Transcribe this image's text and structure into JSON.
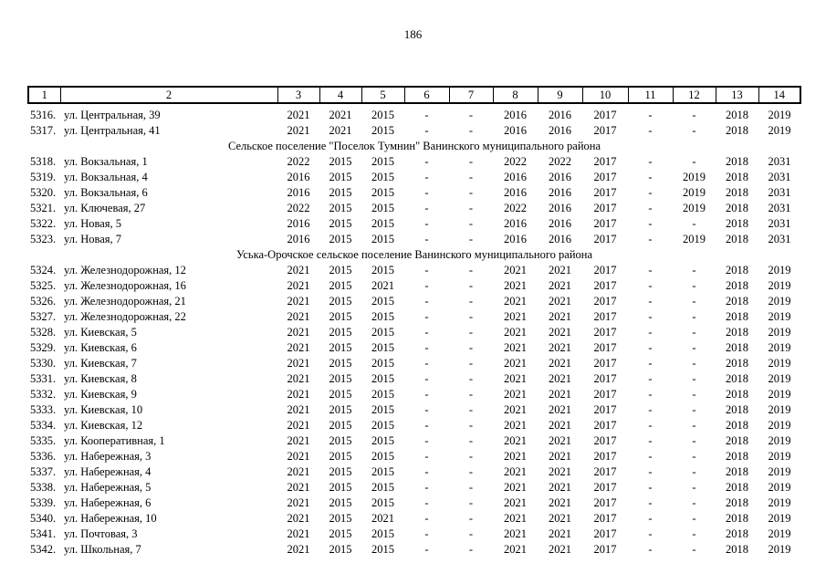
{
  "page": {
    "number": "186"
  },
  "table": {
    "columns": [
      "1",
      "2",
      "3",
      "4",
      "5",
      "6",
      "7",
      "8",
      "9",
      "10",
      "11",
      "12",
      "13",
      "14"
    ],
    "rows": [
      {
        "type": "data",
        "num": "5316.",
        "street": "ул. Центральная, 39",
        "values": [
          "2021",
          "2021",
          "2015",
          "-",
          "-",
          "2016",
          "2016",
          "2017",
          "-",
          "-",
          "2018",
          "2019"
        ]
      },
      {
        "type": "data",
        "num": "5317.",
        "street": "ул. Центральная, 41",
        "values": [
          "2021",
          "2021",
          "2015",
          "-",
          "-",
          "2016",
          "2016",
          "2017",
          "-",
          "-",
          "2018",
          "2019"
        ]
      },
      {
        "type": "section",
        "label": "Сельское поселение \"Поселок Тумнин\" Ванинского муниципального района"
      },
      {
        "type": "data",
        "num": "5318.",
        "street": "ул. Вокзальная, 1",
        "values": [
          "2022",
          "2015",
          "2015",
          "-",
          "-",
          "2022",
          "2022",
          "2017",
          "-",
          "-",
          "2018",
          "2031"
        ]
      },
      {
        "type": "data",
        "num": "5319.",
        "street": "ул. Вокзальная, 4",
        "values": [
          "2016",
          "2015",
          "2015",
          "-",
          "-",
          "2016",
          "2016",
          "2017",
          "-",
          "2019",
          "2018",
          "2031"
        ]
      },
      {
        "type": "data",
        "num": "5320.",
        "street": "ул. Вокзальная, 6",
        "values": [
          "2016",
          "2015",
          "2015",
          "-",
          "-",
          "2016",
          "2016",
          "2017",
          "-",
          "2019",
          "2018",
          "2031"
        ]
      },
      {
        "type": "data",
        "num": "5321.",
        "street": "ул. Ключевая, 27",
        "values": [
          "2022",
          "2015",
          "2015",
          "-",
          "-",
          "2022",
          "2016",
          "2017",
          "-",
          "2019",
          "2018",
          "2031"
        ]
      },
      {
        "type": "data",
        "num": "5322.",
        "street": "ул. Новая, 5",
        "values": [
          "2016",
          "2015",
          "2015",
          "-",
          "-",
          "2016",
          "2016",
          "2017",
          "-",
          "-",
          "2018",
          "2031"
        ]
      },
      {
        "type": "data",
        "num": "5323.",
        "street": "ул. Новая, 7",
        "values": [
          "2016",
          "2015",
          "2015",
          "-",
          "-",
          "2016",
          "2016",
          "2017",
          "-",
          "2019",
          "2018",
          "2031"
        ]
      },
      {
        "type": "section",
        "label": "Уська-Орочское сельское поселение Ванинского муниципального района"
      },
      {
        "type": "data",
        "num": "5324.",
        "street": "ул. Железнодорожная, 12",
        "values": [
          "2021",
          "2015",
          "2015",
          "-",
          "-",
          "2021",
          "2021",
          "2017",
          "-",
          "-",
          "2018",
          "2019"
        ]
      },
      {
        "type": "data",
        "num": "5325.",
        "street": "ул. Железнодорожная, 16",
        "values": [
          "2021",
          "2015",
          "2021",
          "-",
          "-",
          "2021",
          "2021",
          "2017",
          "-",
          "-",
          "2018",
          "2019"
        ]
      },
      {
        "type": "data",
        "num": "5326.",
        "street": "ул. Железнодорожная, 21",
        "values": [
          "2021",
          "2015",
          "2015",
          "-",
          "-",
          "2021",
          "2021",
          "2017",
          "-",
          "-",
          "2018",
          "2019"
        ]
      },
      {
        "type": "data",
        "num": "5327.",
        "street": "ул. Железнодорожная, 22",
        "values": [
          "2021",
          "2015",
          "2015",
          "-",
          "-",
          "2021",
          "2021",
          "2017",
          "-",
          "-",
          "2018",
          "2019"
        ]
      },
      {
        "type": "data",
        "num": "5328.",
        "street": "ул. Киевская, 5",
        "values": [
          "2021",
          "2015",
          "2015",
          "-",
          "-",
          "2021",
          "2021",
          "2017",
          "-",
          "-",
          "2018",
          "2019"
        ]
      },
      {
        "type": "data",
        "num": "5329.",
        "street": "ул. Киевская, 6",
        "values": [
          "2021",
          "2015",
          "2015",
          "-",
          "-",
          "2021",
          "2021",
          "2017",
          "-",
          "-",
          "2018",
          "2019"
        ]
      },
      {
        "type": "data",
        "num": "5330.",
        "street": "ул. Киевская, 7",
        "values": [
          "2021",
          "2015",
          "2015",
          "-",
          "-",
          "2021",
          "2021",
          "2017",
          "-",
          "-",
          "2018",
          "2019"
        ]
      },
      {
        "type": "data",
        "num": "5331.",
        "street": "ул. Киевская, 8",
        "values": [
          "2021",
          "2015",
          "2015",
          "-",
          "-",
          "2021",
          "2021",
          "2017",
          "-",
          "-",
          "2018",
          "2019"
        ]
      },
      {
        "type": "data",
        "num": "5332.",
        "street": "ул. Киевская, 9",
        "values": [
          "2021",
          "2015",
          "2015",
          "-",
          "-",
          "2021",
          "2021",
          "2017",
          "-",
          "-",
          "2018",
          "2019"
        ]
      },
      {
        "type": "data",
        "num": "5333.",
        "street": "ул. Киевская, 10",
        "values": [
          "2021",
          "2015",
          "2015",
          "-",
          "-",
          "2021",
          "2021",
          "2017",
          "-",
          "-",
          "2018",
          "2019"
        ]
      },
      {
        "type": "data",
        "num": "5334.",
        "street": "ул. Киевская, 12",
        "values": [
          "2021",
          "2015",
          "2015",
          "-",
          "-",
          "2021",
          "2021",
          "2017",
          "-",
          "-",
          "2018",
          "2019"
        ]
      },
      {
        "type": "data",
        "num": "5335.",
        "street": "ул. Кооперативная, 1",
        "values": [
          "2021",
          "2015",
          "2015",
          "-",
          "-",
          "2021",
          "2021",
          "2017",
          "-",
          "-",
          "2018",
          "2019"
        ]
      },
      {
        "type": "data",
        "num": "5336.",
        "street": "ул. Набережная, 3",
        "values": [
          "2021",
          "2015",
          "2015",
          "-",
          "-",
          "2021",
          "2021",
          "2017",
          "-",
          "-",
          "2018",
          "2019"
        ]
      },
      {
        "type": "data",
        "num": "5337.",
        "street": "ул. Набережная, 4",
        "values": [
          "2021",
          "2015",
          "2015",
          "-",
          "-",
          "2021",
          "2021",
          "2017",
          "-",
          "-",
          "2018",
          "2019"
        ]
      },
      {
        "type": "data",
        "num": "5338.",
        "street": "ул. Набережная, 5",
        "values": [
          "2021",
          "2015",
          "2015",
          "-",
          "-",
          "2021",
          "2021",
          "2017",
          "-",
          "-",
          "2018",
          "2019"
        ]
      },
      {
        "type": "data",
        "num": "5339.",
        "street": "ул. Набережная, 6",
        "values": [
          "2021",
          "2015",
          "2015",
          "-",
          "-",
          "2021",
          "2021",
          "2017",
          "-",
          "-",
          "2018",
          "2019"
        ]
      },
      {
        "type": "data",
        "num": "5340.",
        "street": "ул. Набережная, 10",
        "values": [
          "2021",
          "2015",
          "2021",
          "-",
          "-",
          "2021",
          "2021",
          "2017",
          "-",
          "-",
          "2018",
          "2019"
        ]
      },
      {
        "type": "data",
        "num": "5341.",
        "street": "ул. Почтовая, 3",
        "values": [
          "2021",
          "2015",
          "2015",
          "-",
          "-",
          "2021",
          "2021",
          "2017",
          "-",
          "-",
          "2018",
          "2019"
        ]
      },
      {
        "type": "data",
        "num": "5342.",
        "street": "ул. Школьная, 7",
        "values": [
          "2021",
          "2015",
          "2015",
          "-",
          "-",
          "2021",
          "2021",
          "2017",
          "-",
          "-",
          "2018",
          "2019"
        ]
      }
    ]
  }
}
